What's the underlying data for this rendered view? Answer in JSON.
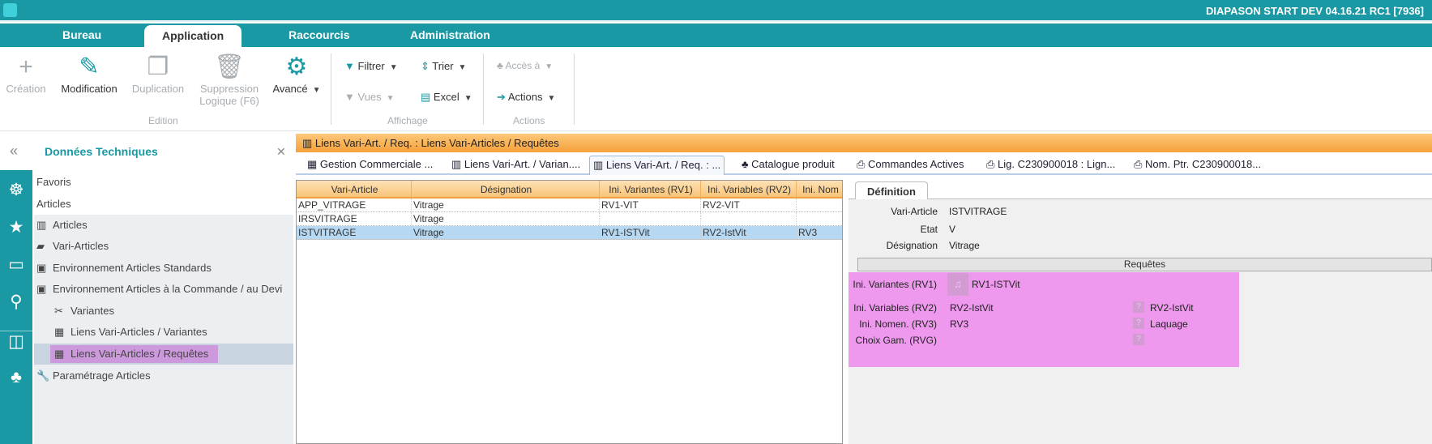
{
  "app": {
    "title": "DIAPASON START DEV 04.16.21 RC1 [7936]"
  },
  "menu": {
    "tabs": [
      "Bureau",
      "Application",
      "Raccourcis",
      "Administration"
    ],
    "active": "Application"
  },
  "ribbon": {
    "creation": "Création",
    "modification": "Modification",
    "duplication": "Duplication",
    "suppression": "Suppression Logique (F6)",
    "avance": "Avancé",
    "edition_group": "Edition",
    "filtrer": "Filtrer",
    "trier": "Trier",
    "vues": "Vues",
    "excel": "Excel",
    "affichage_group": "Affichage",
    "acces": "Accès à",
    "actions": "Actions",
    "actions_group": "Actions"
  },
  "nav": {
    "title": "Données Techniques",
    "items": [
      {
        "label": "Favoris",
        "icon": "none"
      },
      {
        "label": "Articles",
        "icon": "none"
      },
      {
        "label": "Articles",
        "icon": "books-icon"
      },
      {
        "label": "Vari-Articles",
        "icon": "cards-icon"
      },
      {
        "label": "Environnement Articles Standards",
        "icon": "folder-icon"
      },
      {
        "label": "Environnement Articles à la Commande / au Devi",
        "icon": "folder-icon"
      },
      {
        "label": "Variantes",
        "icon": "tools-icon"
      },
      {
        "label": "Liens Vari-Articles / Variantes",
        "icon": "grid-icon"
      },
      {
        "label": "Liens Vari-Articles / Requêtes",
        "icon": "grid-icon"
      },
      {
        "label": "Paramétrage Articles",
        "icon": "wrench-icon"
      }
    ],
    "selected": "Liens Vari-Articles / Requêtes"
  },
  "window": {
    "title": "Liens Vari-Art. / Req. : Liens Vari-Articles / Requêtes"
  },
  "doc_tabs": [
    "Gestion Commerciale ...",
    "Liens Vari-Art. / Varian....",
    "Liens Vari-Art. / Req. : ...",
    "Catalogue produit",
    "Commandes Actives",
    "Lig. C230900018 : Lign...",
    "Nom. Ptr. C230900018..."
  ],
  "grid": {
    "columns": [
      "Vari-Article",
      "Désignation",
      "Ini. Variantes (RV1)",
      "Ini. Variables (RV2)",
      "Ini. Nom"
    ],
    "rows": [
      [
        "APP_VITRAGE",
        "Vitrage",
        "RV1-VIT",
        "RV2-VIT",
        ""
      ],
      [
        "IRSVITRAGE",
        "Vitrage",
        "",
        "",
        ""
      ],
      [
        "ISTVITRAGE",
        "Vitrage",
        "RV1-ISTVit",
        "RV2-IstVit",
        "RV3"
      ]
    ],
    "selected_row": 2
  },
  "detail": {
    "tab": "Définition",
    "fields": [
      {
        "label": "Vari-Article",
        "value": "ISTVITRAGE"
      },
      {
        "label": "Etat",
        "value": "V"
      },
      {
        "label": "Désignation",
        "value": "Vitrage"
      }
    ],
    "section": "Requêtes",
    "requetes": [
      {
        "label": "Ini. Variantes (RV1)",
        "value": "RV1-ISTVit",
        "right": ""
      },
      {
        "label": "Ini. Variables (RV2)",
        "value": "RV2-IstVit",
        "right": "RV2-IstVit"
      },
      {
        "label": "Ini. Nomen. (RV3)",
        "value": "RV3",
        "right": "Laquage"
      },
      {
        "label": "Choix Gam. (RVG)",
        "value": "",
        "right": ""
      }
    ],
    "highlight_color": "#ee99ee"
  },
  "colors": {
    "brand": "#1a98a3",
    "window_bar": "#f5a13a",
    "selection": "#b7d8f2"
  }
}
